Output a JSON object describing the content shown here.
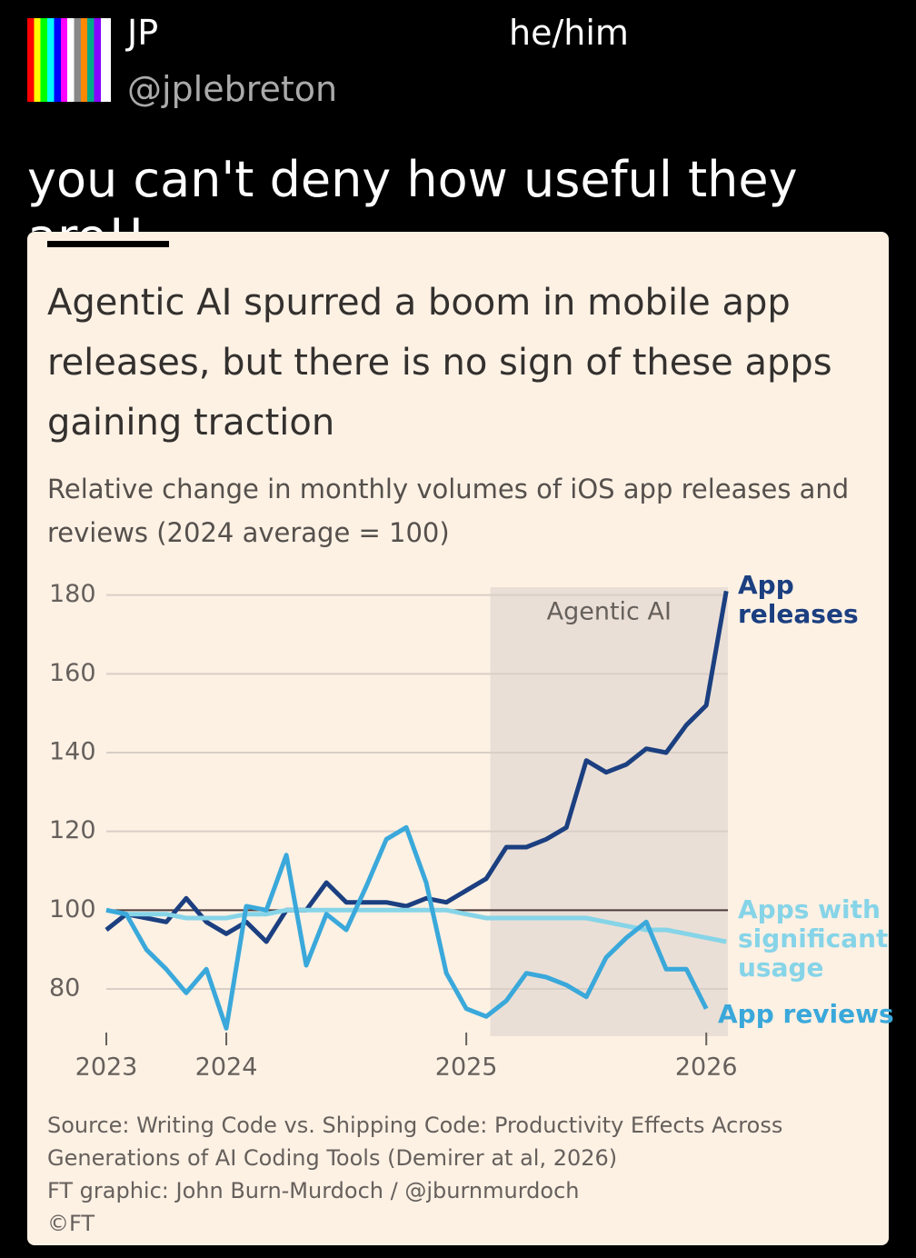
{
  "post": {
    "name": "JP",
    "pronouns": "he/him",
    "handle": "@jplebreton",
    "text": "you can't deny how useful they are!!"
  },
  "chart_data": {
    "type": "line",
    "title": "Agentic AI spurred a boom in mobile app releases, but there is no sign of these apps gaining traction",
    "subtitle": "Relative change in monthly volumes of iOS app releases and reviews (2024 average = 100)",
    "x": [
      2023.5,
      2023.583,
      2023.667,
      2023.75,
      2023.833,
      2023.917,
      2024,
      2024.083,
      2024.167,
      2024.25,
      2024.333,
      2024.417,
      2024.5,
      2024.583,
      2024.667,
      2024.75,
      2024.833,
      2024.917,
      2025,
      2025.083,
      2025.167,
      2025.25,
      2025.333,
      2025.417,
      2025.5,
      2025.583,
      2025.667,
      2025.75,
      2025.833,
      2025.917,
      2026,
      2026.083
    ],
    "series": [
      {
        "name": "App releases",
        "color": "#1b3f80",
        "values": [
          95,
          99,
          98,
          97,
          103,
          97,
          94,
          97,
          92,
          100,
          100,
          107,
          102,
          102,
          102,
          101,
          103,
          102,
          105,
          108,
          116,
          116,
          118,
          121,
          138,
          135,
          137,
          141,
          140,
          147,
          152,
          181
        ]
      },
      {
        "name": "Apps with significant usage",
        "color": "#86d4e8",
        "values": [
          100,
          99,
          99,
          99,
          98,
          98,
          98,
          99,
          99,
          100,
          100,
          100,
          100,
          100,
          100,
          100,
          100,
          100,
          99,
          98,
          98,
          98,
          98,
          98,
          98,
          97,
          96,
          95,
          95,
          94,
          93,
          92
        ]
      },
      {
        "name": "App reviews",
        "color": "#3aa8da",
        "values": [
          100,
          99,
          90,
          85,
          79,
          85,
          70,
          101,
          100,
          114,
          86,
          99,
          95,
          106,
          118,
          121,
          107,
          84,
          75,
          73,
          77,
          84,
          83,
          81,
          78,
          88,
          93,
          97,
          85,
          85,
          75,
          null
        ]
      }
    ],
    "xlim": [
      2023.5,
      2026.09
    ],
    "xticks": [
      {
        "value": 2023.5,
        "label": "2023"
      },
      2024,
      2025,
      2026
    ],
    "ylim": [
      68,
      182
    ],
    "yticks": [
      80,
      100,
      120,
      140,
      160,
      180
    ],
    "grid": true,
    "reference_line": 100,
    "shade": {
      "x": [
        2025.1,
        2026.09
      ],
      "label": "Agentic AI"
    },
    "source": [
      "Source: Writing Code vs. Shipping Code: Productivity Effects Across",
      "Generations of AI Coding Tools (Demirer at al, 2026)",
      "FT graphic: John Burn-Murdoch / @jburnmurdoch",
      "©FT"
    ]
  }
}
